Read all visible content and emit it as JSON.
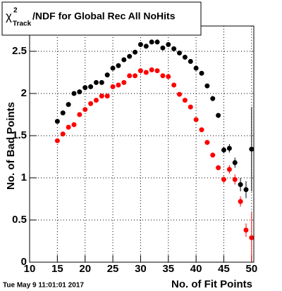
{
  "chart_data": {
    "type": "scatter",
    "title": {
      "symbol": "χ",
      "sup": "2",
      "sub": "Track",
      "text": "/NDF for Global Rec All NoHits"
    },
    "x_label": "No. of Fit Points",
    "y_label": "No. of Bad Points",
    "footer": "Tue May  9 11:01:01 2017",
    "x": [
      15,
      16,
      17,
      18,
      19,
      20,
      21,
      22,
      23,
      24,
      25,
      26,
      27,
      28,
      29,
      30,
      31,
      32,
      33,
      34,
      35,
      36,
      37,
      38,
      39,
      40,
      41,
      42,
      43,
      44,
      45,
      46,
      47,
      48,
      49,
      50
    ],
    "series": [
      {
        "color": "#000000",
        "values": [
          1.67,
          1.77,
          1.87,
          2.0,
          2.02,
          2.07,
          2.08,
          2.13,
          2.13,
          2.22,
          2.3,
          2.33,
          2.4,
          2.44,
          2.49,
          2.58,
          2.56,
          2.61,
          2.61,
          2.54,
          2.58,
          2.53,
          2.48,
          2.43,
          2.38,
          2.3,
          2.24,
          2.09,
          1.94,
          1.74,
          1.33,
          1.35,
          1.18,
          0.92,
          0.86,
          1.34
        ],
        "errors": [
          0.02,
          0.02,
          0.02,
          0.02,
          0.02,
          0.02,
          0.02,
          0.02,
          0.02,
          0.02,
          0.02,
          0.02,
          0.02,
          0.02,
          0.02,
          0.02,
          0.02,
          0.02,
          0.02,
          0.02,
          0.02,
          0.02,
          0.02,
          0.02,
          0.02,
          0.02,
          0.02,
          0.02,
          0.03,
          0.03,
          0.04,
          0.05,
          0.06,
          0.08,
          0.1,
          0.5
        ]
      },
      {
        "color": "#ff0000",
        "values": [
          1.44,
          1.52,
          1.6,
          1.63,
          1.75,
          1.81,
          1.88,
          1.92,
          1.97,
          1.97,
          2.08,
          2.1,
          2.13,
          2.21,
          2.21,
          2.27,
          2.25,
          2.28,
          2.27,
          2.21,
          2.2,
          2.1,
          1.99,
          1.92,
          1.84,
          1.69,
          1.57,
          1.42,
          1.27,
          1.12,
          0.98,
          1.1,
          0.98,
          0.72,
          0.38,
          0.29
        ],
        "errors": [
          0.02,
          0.02,
          0.02,
          0.02,
          0.02,
          0.02,
          0.02,
          0.02,
          0.02,
          0.02,
          0.02,
          0.02,
          0.02,
          0.02,
          0.02,
          0.02,
          0.02,
          0.02,
          0.02,
          0.02,
          0.02,
          0.02,
          0.02,
          0.02,
          0.02,
          0.02,
          0.02,
          0.02,
          0.03,
          0.03,
          0.04,
          0.05,
          0.06,
          0.06,
          0.08,
          0.3
        ]
      }
    ],
    "xlim": [
      10,
      50.4
    ],
    "ylim": [
      0,
      2.8
    ],
    "xticks": [
      10,
      15,
      20,
      25,
      30,
      35,
      40,
      45,
      50
    ],
    "yticks": [
      0,
      0.5,
      1,
      1.5,
      2,
      2.5
    ],
    "grid": true
  }
}
